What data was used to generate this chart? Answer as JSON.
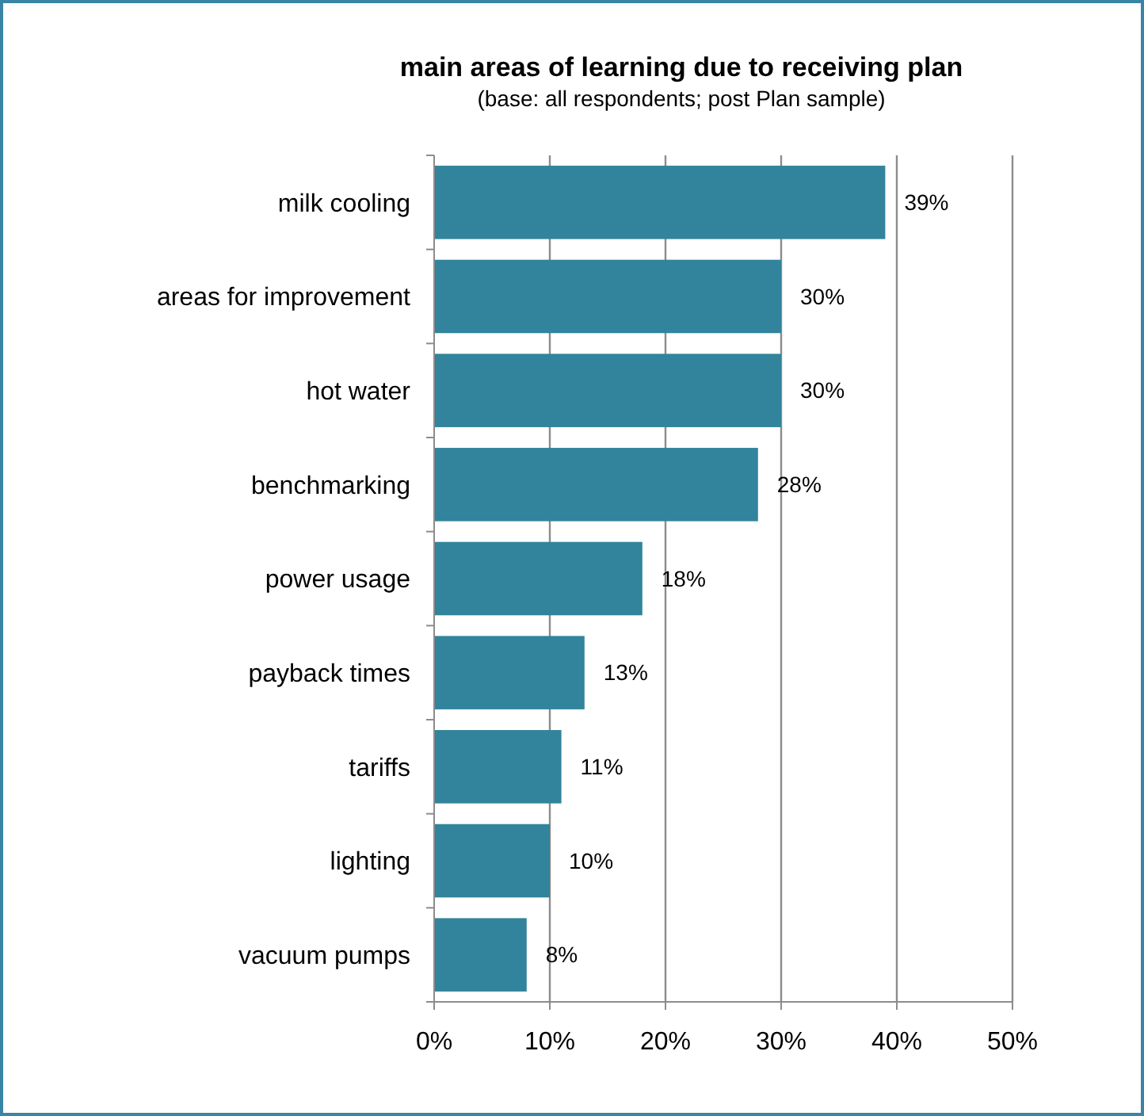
{
  "chart_data": {
    "type": "bar",
    "orientation": "horizontal",
    "title": "main areas of learning due to receiving plan",
    "subtitle": "(base: all respondents; post Plan sample)",
    "categories": [
      "milk cooling",
      "areas for improvement",
      "hot water",
      "benchmarking",
      "power usage",
      "payback times",
      "tariffs",
      "lighting",
      "vacuum pumps"
    ],
    "values": [
      39,
      30,
      30,
      28,
      18,
      13,
      11,
      10,
      8
    ],
    "color": "#31849b",
    "value_labels": [
      "39%",
      "30%",
      "30%",
      "28%",
      "18%",
      "13%",
      "11%",
      "10%",
      "8%"
    ],
    "xlim": [
      0,
      50
    ],
    "xticks": [
      {
        "value": 0,
        "label": "0%"
      },
      {
        "value": 10,
        "label": "10%"
      },
      {
        "value": 20,
        "label": "20%"
      },
      {
        "value": 30,
        "label": "30%"
      },
      {
        "value": 40,
        "label": "40%"
      },
      {
        "value": 50,
        "label": "50%"
      }
    ],
    "grid": "x"
  }
}
